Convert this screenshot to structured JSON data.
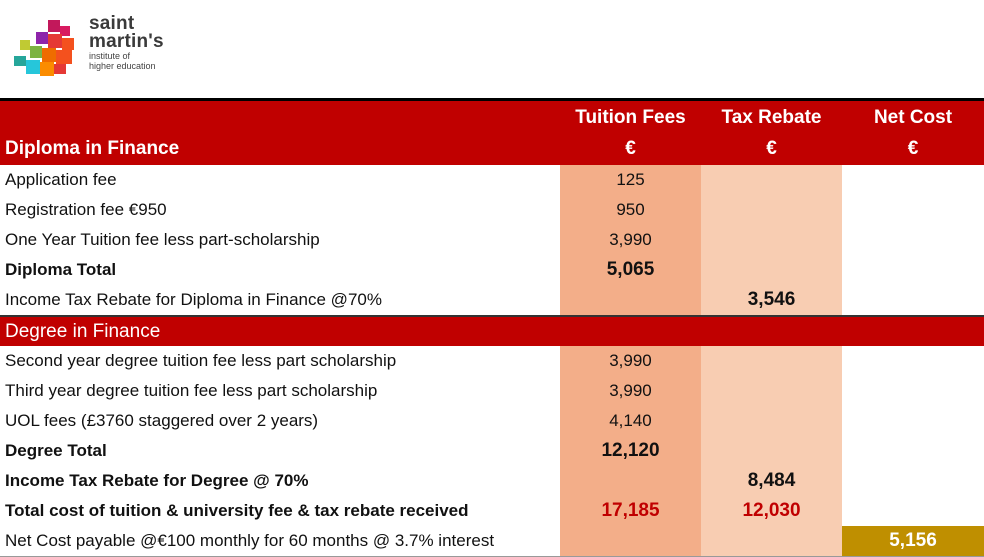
{
  "logo": {
    "line1": "saint",
    "line2": "martin's",
    "line3": "institute of",
    "line4": "higher education"
  },
  "headers": {
    "col_fees": "Tuition Fees",
    "col_rebate": "Tax Rebate",
    "col_net": "Net Cost",
    "currency": "€",
    "section_diploma": "Diploma in Finance",
    "section_degree": "Degree in Finance"
  },
  "rows": {
    "r1": {
      "label": "Application fee",
      "fees": "125"
    },
    "r2": {
      "label": "Registration fee €950",
      "fees": "950"
    },
    "r3": {
      "label": "One Year Tuition fee less part-scholarship",
      "fees": "3,990"
    },
    "r4": {
      "label": "Diploma Total",
      "fees": "5,065"
    },
    "r5": {
      "label": "Income Tax Rebate for Diploma in Finance @70%",
      "rebate": "3,546"
    },
    "r6": {
      "label": "Second year degree tuition fee less part scholarship",
      "fees": "3,990"
    },
    "r7": {
      "label": "Third year degree tuition fee less part scholarship",
      "fees": "3,990"
    },
    "r8": {
      "label": "UOL fees (£3760 staggered over 2 years)",
      "fees": "4,140"
    },
    "r9": {
      "label": "Degree Total",
      "fees": "12,120"
    },
    "r10": {
      "label": "Income Tax Rebate for Degree @ 70%",
      "rebate": "8,484"
    },
    "r11": {
      "label": "Total cost of tuition & university fee & tax rebate received",
      "fees": "17,185",
      "rebate": "12,030"
    },
    "r12": {
      "label": "Net Cost  payable @€100 monthly for 60 months @ 3.7% interest",
      "net": "5,156"
    }
  },
  "colors": {
    "header_red": "#c00000",
    "fees_column": "#f3ae89",
    "rebate_column": "#f8cdb2",
    "net_highlight": "#bf8f00"
  }
}
